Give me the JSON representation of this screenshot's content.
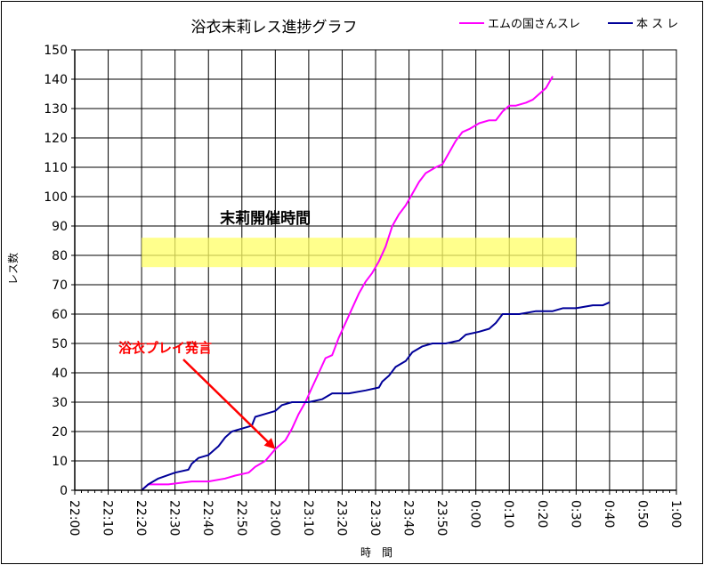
{
  "chart_data": {
    "type": "line",
    "title": "浴衣末莉レス進捗グラフ",
    "xlabel": "時　間",
    "ylabel": "レス数",
    "x_tick_labels": [
      "22:00",
      "22:10",
      "22:20",
      "22:30",
      "22:40",
      "22:50",
      "23:00",
      "23:10",
      "23:20",
      "23:30",
      "23:40",
      "23:50",
      "0:00",
      "0:10",
      "0:20",
      "0:30",
      "0:40",
      "0:50",
      "1:00"
    ],
    "x_range_minutes": [
      0,
      180
    ],
    "ylim": [
      0,
      150
    ],
    "y_ticks": [
      0,
      10,
      20,
      30,
      40,
      50,
      60,
      70,
      80,
      90,
      100,
      110,
      120,
      130,
      140,
      150
    ],
    "grid": true,
    "legend_position": "top-right",
    "series": [
      {
        "name": "エムの国さんスレ",
        "color": "#ff00ff",
        "points": [
          [
            20,
            0
          ],
          [
            22,
            2
          ],
          [
            28,
            2
          ],
          [
            35,
            3
          ],
          [
            40,
            3
          ],
          [
            45,
            4
          ],
          [
            48,
            5
          ],
          [
            52,
            6
          ],
          [
            54,
            8
          ],
          [
            57,
            10
          ],
          [
            60,
            14
          ],
          [
            63,
            17
          ],
          [
            65,
            21
          ],
          [
            67,
            26
          ],
          [
            69,
            30
          ],
          [
            71,
            35
          ],
          [
            73,
            40
          ],
          [
            75,
            45
          ],
          [
            77,
            46
          ],
          [
            79,
            52
          ],
          [
            81,
            57
          ],
          [
            83,
            62
          ],
          [
            85,
            67
          ],
          [
            87,
            71
          ],
          [
            89,
            74
          ],
          [
            91,
            78
          ],
          [
            93,
            83
          ],
          [
            95,
            90
          ],
          [
            97,
            94
          ],
          [
            99,
            97
          ],
          [
            101,
            101
          ],
          [
            103,
            105
          ],
          [
            105,
            108
          ],
          [
            108,
            110
          ],
          [
            110,
            111
          ],
          [
            112,
            115
          ],
          [
            114,
            119
          ],
          [
            116,
            122
          ],
          [
            118,
            123
          ],
          [
            121,
            125
          ],
          [
            124,
            126
          ],
          [
            126,
            126
          ],
          [
            128,
            129
          ],
          [
            130,
            131
          ],
          [
            132,
            131
          ],
          [
            135,
            132
          ],
          [
            137,
            133
          ],
          [
            139,
            135
          ],
          [
            141,
            137
          ],
          [
            143,
            141
          ]
        ]
      },
      {
        "name": "本 ス レ",
        "color": "#000099",
        "points": [
          [
            20,
            0
          ],
          [
            22,
            2
          ],
          [
            25,
            4
          ],
          [
            30,
            6
          ],
          [
            34,
            7
          ],
          [
            35,
            9
          ],
          [
            37,
            11
          ],
          [
            40,
            12
          ],
          [
            43,
            15
          ],
          [
            45,
            18
          ],
          [
            47,
            20
          ],
          [
            50,
            21
          ],
          [
            53,
            22
          ],
          [
            54,
            25
          ],
          [
            57,
            26
          ],
          [
            60,
            27
          ],
          [
            62,
            29
          ],
          [
            65,
            30
          ],
          [
            70,
            30
          ],
          [
            74,
            31
          ],
          [
            77,
            33
          ],
          [
            82,
            33
          ],
          [
            87,
            34
          ],
          [
            91,
            35
          ],
          [
            92,
            37
          ],
          [
            94,
            39
          ],
          [
            96,
            42
          ],
          [
            99,
            44
          ],
          [
            101,
            47
          ],
          [
            104,
            49
          ],
          [
            107,
            50
          ],
          [
            111,
            50
          ],
          [
            115,
            51
          ],
          [
            117,
            53
          ],
          [
            121,
            54
          ],
          [
            124,
            55
          ],
          [
            126,
            57
          ],
          [
            128,
            60
          ],
          [
            133,
            60
          ],
          [
            138,
            61
          ],
          [
            143,
            61
          ],
          [
            146,
            62
          ],
          [
            150,
            62
          ],
          [
            155,
            63
          ],
          [
            158,
            63
          ],
          [
            160,
            64
          ]
        ]
      }
    ],
    "annotations": [
      {
        "text": "末莉開催時間",
        "type": "band",
        "x_start": 20,
        "x_end": 150,
        "y_start": 76,
        "y_end": 86,
        "color": "#ffff66"
      },
      {
        "text": "浴衣プレイ発言",
        "type": "arrow",
        "target_x": 60,
        "target_y": 14,
        "color": "#ff0000"
      }
    ]
  }
}
